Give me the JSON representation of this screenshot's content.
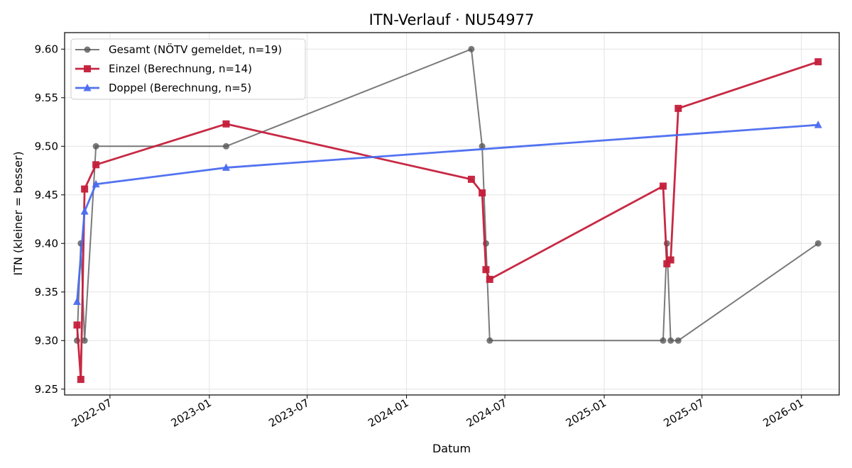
{
  "chart_data": {
    "type": "line",
    "title": "ITN-Verlauf · NU54977",
    "xlabel": "Datum",
    "ylabel": "ITN  (kleiner = besser)",
    "x_axis_type": "date",
    "xlim": [
      "2022-04-08",
      "2026-03-12"
    ],
    "ylim": [
      9.244,
      9.617
    ],
    "grid": true,
    "legend_position": "top-left",
    "x_ticks": [
      "2022-07",
      "2023-01",
      "2023-07",
      "2024-01",
      "2024-07",
      "2025-01",
      "2025-07",
      "2026-01"
    ],
    "x_tick_dates": [
      "2022-07-01",
      "2023-01-01",
      "2023-07-01",
      "2024-01-01",
      "2024-07-01",
      "2025-01-01",
      "2025-07-01",
      "2026-01-01"
    ],
    "y_ticks": [
      "9.25",
      "9.30",
      "9.35",
      "9.40",
      "9.45",
      "9.50",
      "9.55",
      "9.60"
    ],
    "y_tick_values": [
      9.25,
      9.3,
      9.35,
      9.4,
      9.45,
      9.5,
      9.55,
      9.6
    ],
    "series": [
      {
        "name": "Gesamt (NÖTV gemeldet, n=19)",
        "color": "#555555",
        "marker": "circle",
        "points": [
          {
            "x": "2022-05-01",
            "y": 9.3
          },
          {
            "x": "2022-05-08",
            "y": 9.4
          },
          {
            "x": "2022-05-15",
            "y": 9.3
          },
          {
            "x": "2022-06-05",
            "y": 9.5
          },
          {
            "x": "2023-02-01",
            "y": 9.5
          },
          {
            "x": "2024-04-30",
            "y": 9.6
          },
          {
            "x": "2024-05-20",
            "y": 9.5
          },
          {
            "x": "2024-05-27",
            "y": 9.4
          },
          {
            "x": "2024-06-03",
            "y": 9.3
          },
          {
            "x": "2025-04-20",
            "y": 9.3
          },
          {
            "x": "2025-04-27",
            "y": 9.4
          },
          {
            "x": "2025-05-04",
            "y": 9.3
          },
          {
            "x": "2025-05-18",
            "y": 9.3
          },
          {
            "x": "2026-02-01",
            "y": 9.4
          }
        ]
      },
      {
        "name": "Einzel (Berechnung, n=14)",
        "color": "#c41e3a",
        "marker": "square",
        "points": [
          {
            "x": "2022-05-01",
            "y": 9.316
          },
          {
            "x": "2022-05-08",
            "y": 9.26
          },
          {
            "x": "2022-05-15",
            "y": 9.456
          },
          {
            "x": "2022-06-05",
            "y": 9.481
          },
          {
            "x": "2023-02-01",
            "y": 9.523
          },
          {
            "x": "2024-04-30",
            "y": 9.466
          },
          {
            "x": "2024-05-20",
            "y": 9.452
          },
          {
            "x": "2024-05-27",
            "y": 9.373
          },
          {
            "x": "2024-06-03",
            "y": 9.363
          },
          {
            "x": "2025-04-20",
            "y": 9.459
          },
          {
            "x": "2025-04-27",
            "y": 9.379
          },
          {
            "x": "2025-05-04",
            "y": 9.383
          },
          {
            "x": "2025-05-18",
            "y": 9.539
          },
          {
            "x": "2026-02-01",
            "y": 9.587
          }
        ]
      },
      {
        "name": "Doppel (Berechnung, n=5)",
        "color": "#4a6cf0",
        "marker": "triangle",
        "points": [
          {
            "x": "2022-05-01",
            "y": 9.34
          },
          {
            "x": "2022-05-15",
            "y": 9.433
          },
          {
            "x": "2022-06-05",
            "y": 9.461
          },
          {
            "x": "2023-02-01",
            "y": 9.478
          },
          {
            "x": "2026-02-01",
            "y": 9.522
          }
        ]
      }
    ]
  }
}
